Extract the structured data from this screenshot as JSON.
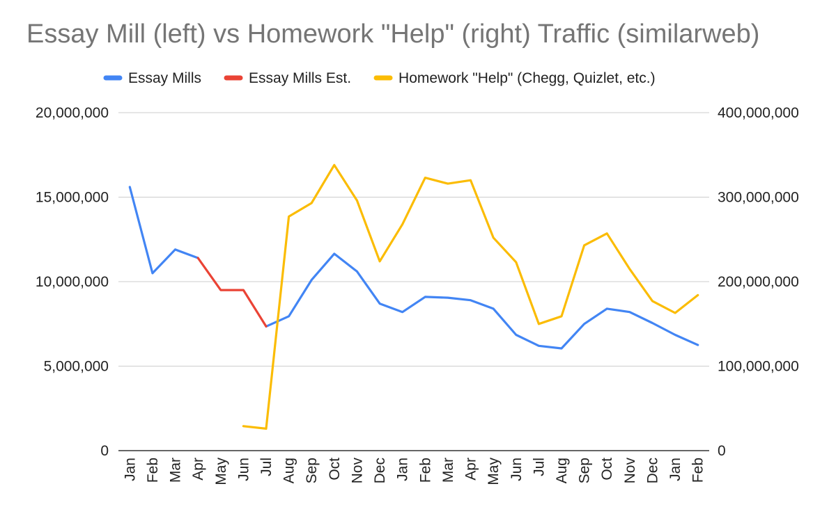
{
  "chart_data": {
    "type": "line",
    "title": "Essay Mill (left) vs Homework \"Help\" (right) Traffic (similarweb)",
    "categories": [
      "Jan",
      "Feb",
      "Mar",
      "Apr",
      "May",
      "Jun",
      "Jul",
      "Aug",
      "Sep",
      "Oct",
      "Nov",
      "Dec",
      "Jan",
      "Feb",
      "Mar",
      "Apr",
      "May",
      "Jun",
      "Jul",
      "Aug",
      "Sep",
      "Oct",
      "Nov",
      "Dec",
      "Jan",
      "Feb"
    ],
    "left_axis": {
      "ylim": [
        0,
        20000000
      ],
      "ticks": [
        0,
        5000000,
        10000000,
        15000000,
        20000000
      ],
      "tick_labels": [
        "0",
        "5,000,000",
        "10,000,000",
        "15,000,000",
        "20,000,000"
      ]
    },
    "right_axis": {
      "ylim": [
        0,
        400000000
      ],
      "ticks": [
        0,
        100000000,
        200000000,
        300000000,
        400000000
      ],
      "tick_labels": [
        "0",
        "100,000,000",
        "200,000,000",
        "300,000,000",
        "400,000,000"
      ]
    },
    "grid": true,
    "legend_position": "top",
    "series": [
      {
        "name": "Essay Mills",
        "axis": "left",
        "color": "#4285F4",
        "values": [
          15600000,
          10500000,
          11900000,
          11400000,
          null,
          null,
          7350000,
          7950000,
          10100000,
          11650000,
          10600000,
          8700000,
          8200000,
          9100000,
          9050000,
          8900000,
          8400000,
          6850000,
          6200000,
          6050000,
          7500000,
          8400000,
          8200000,
          7550000,
          6850000,
          6250000
        ]
      },
      {
        "name": "Essay Mills Est.",
        "axis": "left",
        "color": "#EA4335",
        "values": [
          null,
          null,
          null,
          11400000,
          9500000,
          9500000,
          7350000,
          null,
          null,
          null,
          null,
          null,
          null,
          null,
          null,
          null,
          null,
          null,
          null,
          null,
          null,
          null,
          null,
          null,
          null,
          null
        ]
      },
      {
        "name": "Homework \"Help\" (Chegg, Quizlet, etc.)",
        "axis": "right",
        "color": "#FBBC04",
        "values": [
          null,
          null,
          null,
          null,
          null,
          29000000,
          26000000,
          277000000,
          293000000,
          338000000,
          296000000,
          224000000,
          268000000,
          323000000,
          316000000,
          320000000,
          252000000,
          223000000,
          150000000,
          159000000,
          243000000,
          257000000,
          215000000,
          177000000,
          163000000,
          184000000
        ]
      }
    ]
  }
}
